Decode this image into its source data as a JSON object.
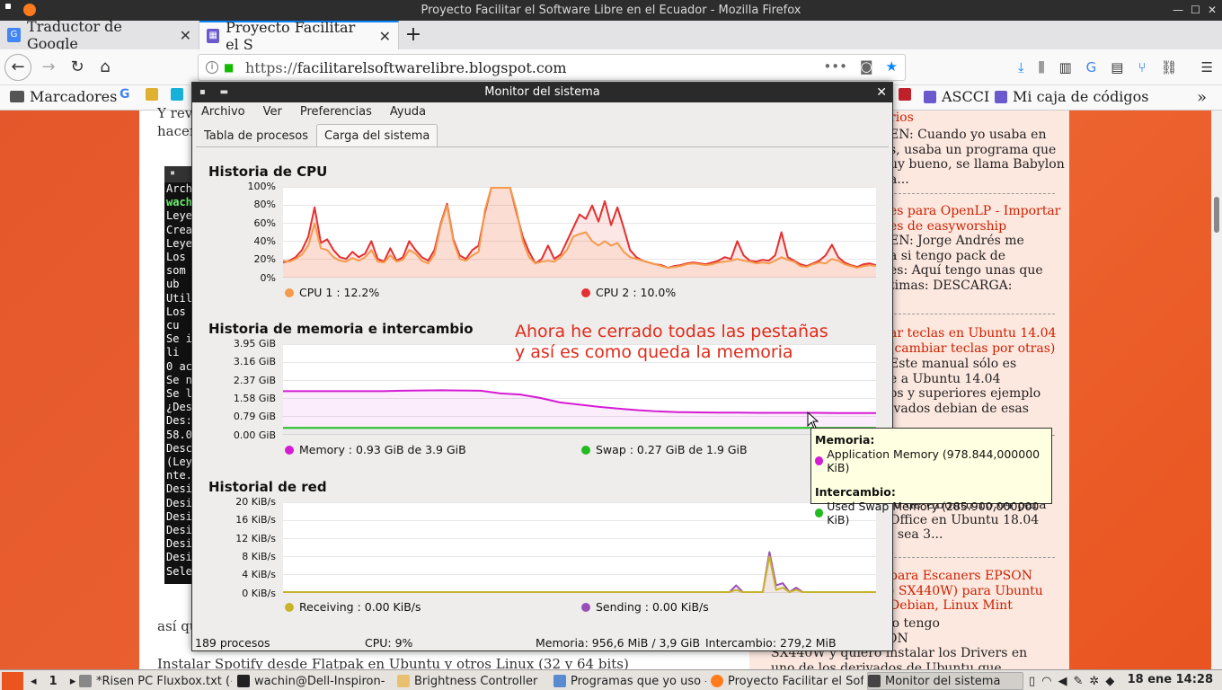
{
  "window_title": "Proyecto Facilitar el Software Libre en el Ecuador - Mozilla Firefox",
  "tabs": [
    {
      "label": "Traductor de Google"
    },
    {
      "label": "Proyecto Facilitar el S"
    }
  ],
  "url": {
    "prefix": "https://",
    "host": "facilitarelsoftwarelibre.blogspot.com"
  },
  "bookmarks": {
    "folder": "Marcadores",
    "ascci": "ASCCI",
    "codes": "Mi caja de códigos"
  },
  "page": {
    "left_frag1": "Y rev",
    "left_frag2": "hacer",
    "left_bottom1": "así qu",
    "left_bottom2": "Instalar Spotify desde Flatpak en Ubuntu y otros Linux (32 y 64 bits)",
    "terminal": [
      "Arch",
      "wach",
      "Leye",
      "Crea",
      "Leye",
      "Los",
      "  som",
      "   ub",
      "Util",
      "Los",
      "   cu",
      "Se i",
      "  li",
      "0 ac",
      "Se n",
      "Se l",
      "¿Des",
      "Des:",
      "58.0",
      "Desc",
      "(Ley",
      "nte.",
      "Desi",
      "Desi",
      "Desi",
      "Desi",
      "Desi",
      "Desi",
      "Sele"
    ],
    "side": [
      {
        "title": "rios",
        "body": [
          "EN: Cuando yo usaba en",
          "s, usaba un programa que",
          "uy bueno, se llama Babylon",
          "a..."
        ]
      },
      {
        "title": "es para OpenLP - Importar",
        "title2": "es de easyworship",
        "body": [
          "EN:  Jorge Andrés me",
          "a si tengo pack de",
          "es: Aquí tengo unas que",
          "timas: DESCARGA:"
        ]
      },
      {
        "title": "ar teclas en Ubuntu 14.04",
        "title2": "(cambiar teclas por otras)",
        "body": [
          "Este manual sólo es",
          "e a Ubuntu 14.04",
          "os y superiores ejemplo",
          "ivados debian de esas"
        ]
      },
      {
        "title": "",
        "body": [
          "-0 de Ubuntu 16.04 para",
          "Office en Ubuntu 18.04",
          ", sea 3..."
        ]
      },
      {
        "title": "para Escaners EPSON",
        "title2": ") SX440W) para Ubuntu",
        "title3": "Debian, Linux Mint",
        "body": [
          "EN: Por el momento tengo",
          "le un escaner EPSON",
          "SX440W y quiero instalar los Drivers en",
          "uno de los derivados de Ubuntu que"
        ]
      }
    ]
  },
  "monitor": {
    "title": "Monitor del sistema",
    "menu": [
      "Archivo",
      "Ver",
      "Preferencias",
      "Ayuda"
    ],
    "tabs": [
      "Tabla de procesos",
      "Carga del sistema"
    ],
    "cpu": {
      "title": "Historia de CPU",
      "yticks": [
        "100%",
        "80%",
        "60%",
        "40%",
        "20%",
        "0%"
      ],
      "legend": [
        "CPU 1 : 12.2%",
        "CPU 2 : 10.0%"
      ],
      "colors": [
        "#f59a4a",
        "#e33030"
      ]
    },
    "mem": {
      "title": "Historia de memoria e intercambio",
      "yticks": [
        "3.95 GiB",
        "3.16 GiB",
        "2.37 GiB",
        "1.58 GiB",
        "0.79 GiB",
        "0.00 GiB"
      ],
      "legend": [
        "Memory : 0.93 GiB de 3.9 GiB",
        "Swap : 0.27 GiB de 1.9 GiB"
      ],
      "colors": [
        "#d41cd4",
        "#22bb22"
      ]
    },
    "net": {
      "title": "Historial de red",
      "yticks": [
        "20 KiB/s",
        "16 KiB/s",
        "12 KiB/s",
        "8 KiB/s",
        "4 KiB/s",
        "0 KiB/s"
      ],
      "legend": [
        "Receiving : 0.00 KiB/s",
        "Sending : 0.00 KiB/s"
      ],
      "colors": [
        "#c8b42c",
        "#9a4fb8"
      ]
    },
    "annotation": [
      "Ahora he cerrado todas las pestañas",
      "y así es como queda la memoria"
    ],
    "tooltip": {
      "h1": "Memoria:",
      "r1": "Application Memory (978.844,000000 KiB)",
      "h2": "Intercambio:",
      "r2": "Used Swap Memory (285.900,000000 KiB)"
    },
    "status": {
      "procs": "189 procesos",
      "cpu": "CPU: 9%",
      "mem": "Memoria: 956,6 MiB / 3,9 GiB",
      "swap": "Intercambio: 279,2 MiB"
    }
  },
  "taskbar": {
    "ws": "1",
    "items": [
      "*Risen PC Fluxbox.txt (~",
      "wachin@Dell-Inspiron-",
      "Brightness Controller",
      "Programas que yo uso –",
      "Proyecto Facilitar el Sof",
      "Monitor del sistema"
    ],
    "clock": "18 ene 14:28"
  },
  "chart_data": [
    {
      "type": "line",
      "title": "Historia de CPU",
      "ylabel": "",
      "ylim": [
        0,
        100
      ],
      "series": [
        {
          "name": "CPU 1 : 12.2%",
          "values": [
            18,
            17,
            20,
            25,
            35,
            60,
            32,
            30,
            22,
            18,
            17,
            21,
            18,
            22,
            30,
            17,
            16,
            24,
            17,
            19,
            30,
            26,
            18,
            15,
            25,
            58,
            80,
            40,
            20,
            18,
            24,
            28,
            75,
            100,
            100,
            100,
            100,
            75,
            40,
            22,
            15,
            17,
            18,
            17,
            22,
            30,
            45,
            48,
            50,
            40,
            35,
            40,
            35,
            38,
            28,
            22,
            20,
            18,
            16,
            14,
            12,
            10,
            11,
            12,
            14,
            15,
            14,
            13,
            14,
            16,
            17,
            18,
            20,
            18,
            17,
            15,
            16,
            15,
            18,
            22,
            19,
            17,
            12,
            11,
            14,
            16,
            15,
            20,
            18,
            14,
            12,
            10,
            12,
            13,
            12
          ]
        },
        {
          "name": "CPU 2 : 10.0%",
          "values": [
            16,
            18,
            22,
            30,
            45,
            78,
            38,
            42,
            30,
            22,
            20,
            28,
            22,
            26,
            40,
            20,
            17,
            32,
            18,
            22,
            40,
            30,
            22,
            18,
            30,
            60,
            82,
            42,
            24,
            20,
            30,
            35,
            72,
            100,
            100,
            100,
            100,
            72,
            45,
            28,
            15,
            20,
            35,
            20,
            25,
            40,
            55,
            70,
            65,
            80,
            62,
            85,
            58,
            78,
            55,
            30,
            22,
            18,
            16,
            14,
            13,
            10,
            12,
            13,
            15,
            16,
            15,
            14,
            16,
            18,
            22,
            20,
            40,
            24,
            18,
            17,
            19,
            18,
            24,
            50,
            22,
            18,
            14,
            12,
            15,
            18,
            24,
            36,
            22,
            16,
            13,
            11,
            14,
            15,
            13
          ]
        }
      ]
    },
    {
      "type": "area",
      "title": "Historia de memoria e intercambio",
      "ylim": [
        0,
        3.95
      ],
      "series": [
        {
          "name": "Memory : 0.93 GiB de 3.9 GiB",
          "values": [
            1.9,
            1.9,
            1.9,
            1.9,
            1.9,
            1.9,
            1.92,
            1.93,
            1.94,
            1.93,
            1.92,
            1.8,
            1.75,
            1.6,
            1.4,
            1.3,
            1.2,
            1.12,
            1.05,
            1.0,
            0.97,
            0.96,
            0.95,
            0.95,
            0.94,
            0.94,
            0.94,
            0.94,
            0.93,
            0.93,
            0.93
          ]
        },
        {
          "name": "Swap : 0.27 GiB de 1.9 GiB",
          "values": [
            0.27,
            0.27,
            0.27,
            0.27,
            0.27,
            0.27,
            0.27,
            0.27,
            0.27,
            0.27,
            0.27,
            0.27,
            0.27,
            0.27,
            0.27,
            0.27,
            0.27,
            0.27,
            0.27,
            0.27,
            0.27,
            0.27,
            0.27,
            0.27,
            0.27,
            0.27,
            0.27,
            0.27,
            0.27,
            0.27,
            0.27
          ]
        }
      ]
    },
    {
      "type": "line",
      "title": "Historial de red",
      "ylim": [
        0,
        20
      ],
      "series": [
        {
          "name": "Receiving : 0.00 KiB/s",
          "values": [
            0,
            0,
            0,
            0,
            0,
            0,
            0,
            0,
            0,
            0,
            0,
            0,
            0,
            0,
            0,
            0,
            0,
            0,
            0,
            0,
            0,
            0,
            0,
            0,
            0,
            0,
            0,
            0,
            0,
            0,
            0,
            0,
            0,
            0,
            0,
            0,
            0,
            0,
            0,
            0,
            0,
            0,
            0,
            0,
            0,
            0,
            0,
            0,
            0,
            0,
            0,
            0,
            0,
            0,
            0,
            0,
            0,
            0,
            0,
            0,
            0,
            0,
            0,
            0,
            0,
            0,
            0,
            0,
            0.5,
            0,
            0,
            0,
            0,
            8,
            0.5,
            1,
            0,
            0.5,
            0,
            0,
            0,
            0,
            0,
            0,
            0,
            0,
            0,
            0,
            0,
            0
          ]
        },
        {
          "name": "Sending : 0.00 KiB/s",
          "values": [
            0,
            0,
            0,
            0,
            0,
            0,
            0,
            0,
            0,
            0,
            0,
            0,
            0,
            0,
            0,
            0,
            0,
            0,
            0,
            0,
            0,
            0,
            0,
            0,
            0,
            0,
            0,
            0,
            0,
            0,
            0,
            0,
            0,
            0,
            0,
            0,
            0,
            0,
            0,
            0,
            0,
            0,
            0,
            0,
            0,
            0,
            0,
            0,
            0,
            0,
            0,
            0,
            0,
            0,
            0,
            0,
            0,
            0,
            0,
            0,
            0,
            0,
            0,
            0,
            0,
            0,
            0,
            0,
            1.5,
            0,
            0,
            0,
            0,
            9,
            1.5,
            2,
            0,
            1,
            0,
            0,
            0,
            0,
            0,
            0,
            0,
            0,
            0,
            0,
            0,
            0
          ]
        }
      ]
    }
  ]
}
